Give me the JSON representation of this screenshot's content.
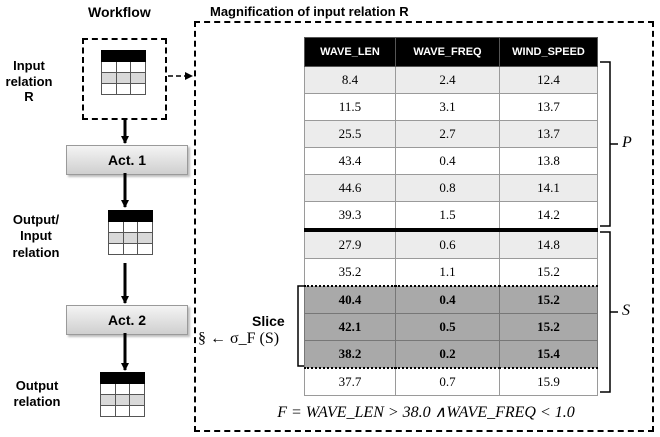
{
  "workflow_title": "Workflow",
  "magnification_title": "Magnification of input relation R",
  "input_label": "Input relation R",
  "act1": "Act. 1",
  "mid_label": "Output/ Input relation",
  "act2": "Act. 2",
  "output_label": "Output relation",
  "slice_label": "Slice",
  "slice_expr": "§ ← σ_F (S)",
  "partition_p": "P",
  "partition_s": "S",
  "formula": "F = WAVE_LEN > 38.0 ∧WAVE_FREQ < 1.0",
  "table": {
    "columns": [
      "WAVE_LEN",
      "WAVE_FREQ",
      "WIND_SPEED"
    ],
    "rows": [
      [
        "8.4",
        "2.4",
        "12.4"
      ],
      [
        "11.5",
        "3.1",
        "13.7"
      ],
      [
        "25.5",
        "2.7",
        "13.7"
      ],
      [
        "43.4",
        "0.4",
        "13.8"
      ],
      [
        "44.6",
        "0.8",
        "14.1"
      ],
      [
        "39.3",
        "1.5",
        "14.2"
      ],
      [
        "27.9",
        "0.6",
        "14.8"
      ],
      [
        "35.2",
        "1.1",
        "15.2"
      ],
      [
        "40.4",
        "0.4",
        "15.2"
      ],
      [
        "42.1",
        "0.5",
        "15.2"
      ],
      [
        "38.2",
        "0.2",
        "15.4"
      ],
      [
        "37.7",
        "0.7",
        "15.9"
      ]
    ]
  }
}
